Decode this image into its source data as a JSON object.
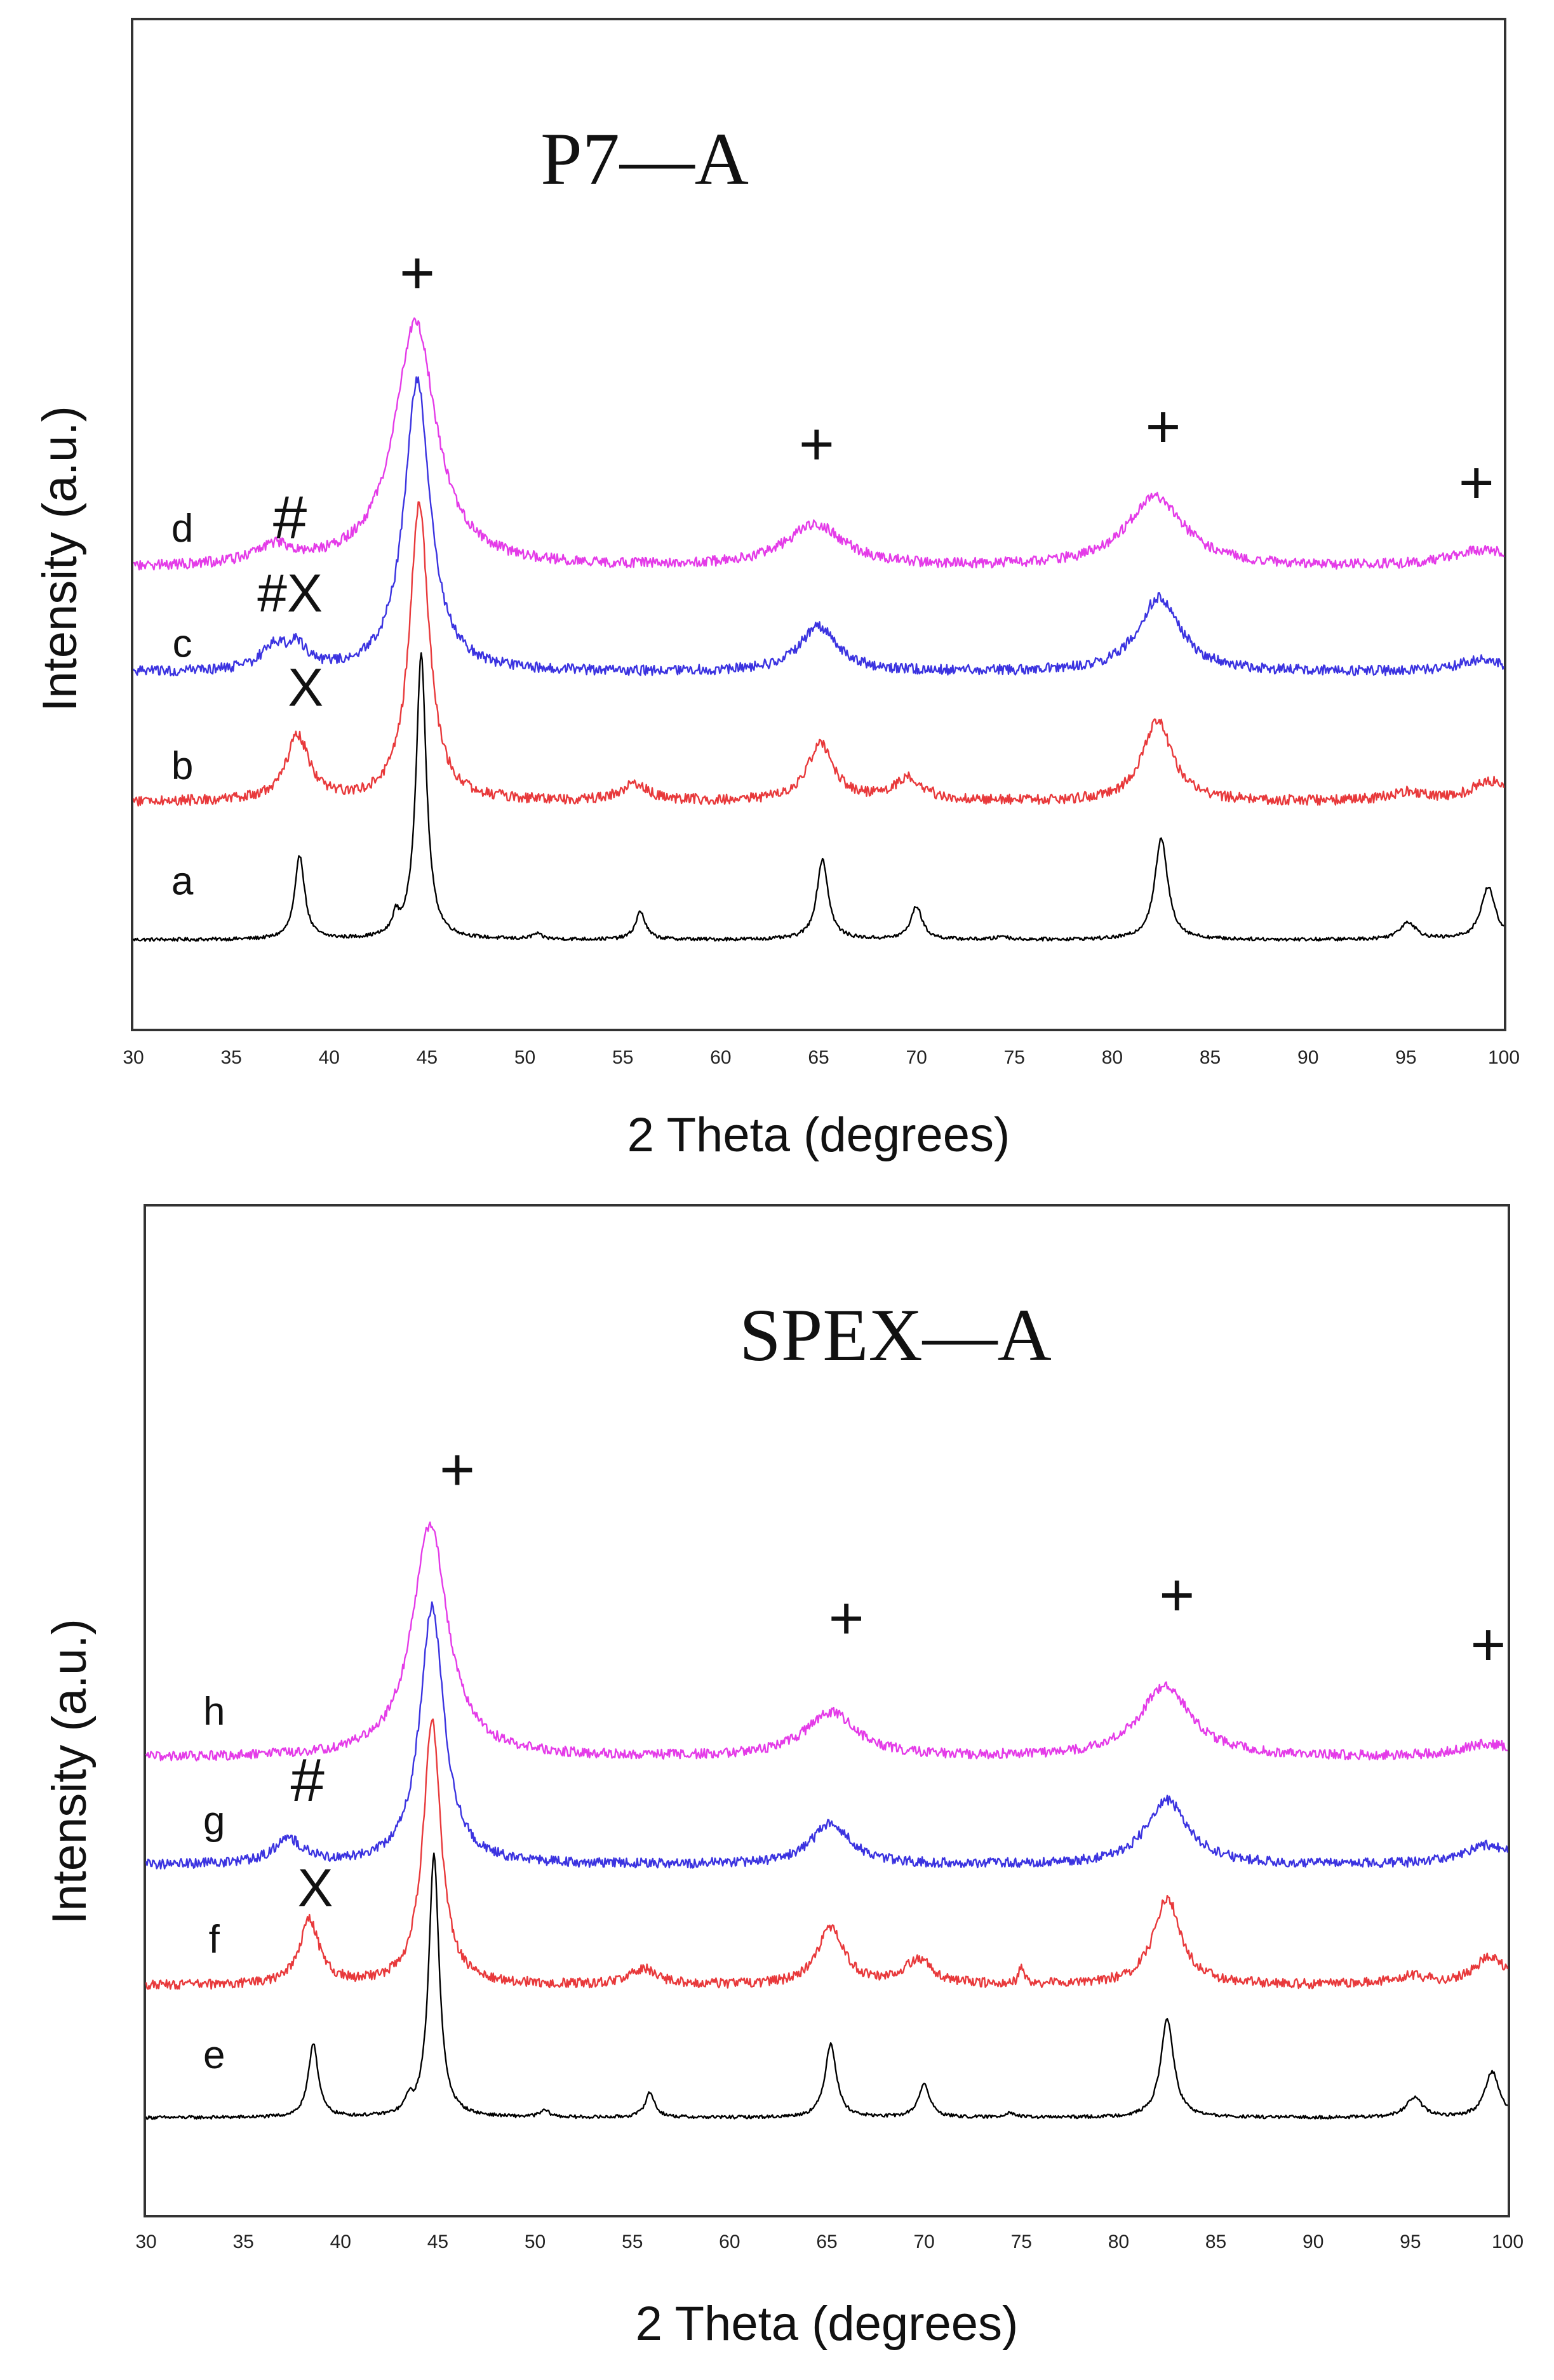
{
  "chart_data": [
    {
      "type": "line",
      "title": "P7—A",
      "xlabel": "2 Theta (degrees)",
      "ylabel": "Intensity (a.u.)",
      "xlim": [
        30,
        100
      ],
      "xticks": [
        "30",
        "35",
        "40",
        "45",
        "50",
        "55",
        "60",
        "65",
        "70",
        "75",
        "80",
        "85",
        "90",
        "95",
        "100"
      ],
      "grid": false,
      "series": [
        {
          "name": "a",
          "color": "#000000",
          "baseline": 0.0,
          "noise": 0.01,
          "peaks": [
            [
              38.5,
              0.48,
              0.3
            ],
            [
              43.4,
              0.1,
              0.2
            ],
            [
              44.7,
              1.63,
              0.32
            ],
            [
              50.6,
              0.03,
              0.3
            ],
            [
              55.9,
              0.16,
              0.3
            ],
            [
              65.2,
              0.46,
              0.35
            ],
            [
              70.0,
              0.19,
              0.35
            ],
            [
              74.4,
              0.02,
              0.3
            ],
            [
              82.5,
              0.58,
              0.4
            ],
            [
              95.1,
              0.1,
              0.5
            ],
            [
              99.2,
              0.3,
              0.45
            ]
          ]
        },
        {
          "name": "b",
          "color": "#e8393b",
          "baseline": 0.79,
          "noise": 0.03,
          "peaks": [
            [
              38.4,
              0.37,
              0.7
            ],
            [
              44.6,
              1.7,
              0.6
            ],
            [
              55.6,
              0.1,
              0.8
            ],
            [
              65.1,
              0.33,
              0.8
            ],
            [
              69.6,
              0.13,
              0.9
            ],
            [
              82.3,
              0.47,
              0.9
            ],
            [
              95.0,
              0.05,
              1.2
            ],
            [
              99.2,
              0.12,
              1.0
            ]
          ]
        },
        {
          "name": "c",
          "color": "#3b33e0",
          "baseline": 1.53,
          "noise": 0.03,
          "peaks": [
            [
              37.2,
              0.14,
              0.8
            ],
            [
              38.4,
              0.12,
              0.6
            ],
            [
              44.5,
              1.67,
              0.8
            ],
            [
              65.0,
              0.26,
              1.2
            ],
            [
              82.4,
              0.43,
              1.3
            ],
            [
              98.8,
              0.07,
              1.5
            ]
          ]
        },
        {
          "name": "d",
          "color": "#e43be8",
          "baseline": 2.13,
          "noise": 0.03,
          "peaks": [
            [
              37.2,
              0.1,
              1.2
            ],
            [
              44.4,
              1.4,
              1.3
            ],
            [
              64.8,
              0.24,
              1.8
            ],
            [
              82.2,
              0.4,
              1.8
            ],
            [
              99.0,
              0.1,
              2.0
            ]
          ]
        }
      ],
      "annotations": [
        {
          "text": "+",
          "x": 44.5,
          "y": 3.7
        },
        {
          "text": "+",
          "x": 64.9,
          "y": 2.72
        },
        {
          "text": "+",
          "x": 82.6,
          "y": 2.82
        },
        {
          "text": "+",
          "x": 98.6,
          "y": 2.5
        },
        {
          "text": "#",
          "x": 38.0,
          "y": 2.3
        },
        {
          "text": "#X",
          "x": 38.0,
          "y": 1.88
        },
        {
          "text": "X",
          "x": 38.8,
          "y": 1.34
        },
        {
          "text": "d",
          "x": 32.5,
          "y": 2.28
        },
        {
          "text": "c",
          "x": 32.5,
          "y": 1.62
        },
        {
          "text": "b",
          "x": 32.5,
          "y": 0.92
        },
        {
          "text": "a",
          "x": 32.5,
          "y": 0.26
        }
      ]
    },
    {
      "type": "line",
      "title": "SPEX—A",
      "xlabel": "2 Theta (degrees)",
      "ylabel": "Intensity (a.u.)",
      "xlim": [
        30,
        100
      ],
      "xticks": [
        "30",
        "35",
        "40",
        "45",
        "50",
        "55",
        "60",
        "65",
        "70",
        "75",
        "80",
        "85",
        "90",
        "95",
        "100"
      ],
      "grid": false,
      "series": [
        {
          "name": "e",
          "color": "#000000",
          "baseline": 0.0,
          "noise": 0.01,
          "peaks": [
            [
              38.6,
              0.45,
              0.3
            ],
            [
              43.5,
              0.08,
              0.2
            ],
            [
              44.8,
              1.6,
              0.32
            ],
            [
              50.5,
              0.04,
              0.3
            ],
            [
              55.9,
              0.15,
              0.3
            ],
            [
              65.2,
              0.45,
              0.35
            ],
            [
              70.0,
              0.2,
              0.35
            ],
            [
              74.4,
              0.03,
              0.3
            ],
            [
              82.5,
              0.6,
              0.4
            ],
            [
              95.2,
              0.12,
              0.5
            ],
            [
              99.2,
              0.28,
              0.45
            ]
          ]
        },
        {
          "name": "f",
          "color": "#e8393b",
          "baseline": 0.8,
          "noise": 0.03,
          "peaks": [
            [
              38.4,
              0.39,
              0.6
            ],
            [
              44.7,
              1.6,
              0.55
            ],
            [
              55.6,
              0.1,
              0.8
            ],
            [
              65.2,
              0.35,
              0.8
            ],
            [
              69.7,
              0.15,
              0.9
            ],
            [
              75.0,
              0.1,
              0.15
            ],
            [
              82.5,
              0.53,
              0.85
            ],
            [
              95.0,
              0.05,
              1.2
            ],
            [
              99.1,
              0.17,
              1.0
            ]
          ]
        },
        {
          "name": "g",
          "color": "#3b33e0",
          "baseline": 1.53,
          "noise": 0.03,
          "peaks": [
            [
              37.3,
              0.15,
              0.9
            ],
            [
              44.7,
              1.56,
              0.75
            ],
            [
              65.2,
              0.25,
              1.2
            ],
            [
              82.5,
              0.39,
              1.3
            ],
            [
              99.0,
              0.12,
              1.5
            ]
          ]
        },
        {
          "name": "h",
          "color": "#e43be8",
          "baseline": 2.18,
          "noise": 0.03,
          "peaks": [
            [
              44.6,
              1.41,
              1.1
            ],
            [
              65.2,
              0.27,
              1.6
            ],
            [
              82.4,
              0.43,
              1.6
            ],
            [
              99.0,
              0.08,
              1.8
            ]
          ]
        }
      ],
      "annotations": [
        {
          "text": "+",
          "x": 46.0,
          "y": 3.8
        },
        {
          "text": "+",
          "x": 66.0,
          "y": 2.9
        },
        {
          "text": "+",
          "x": 83.0,
          "y": 3.04
        },
        {
          "text": "+",
          "x": 99.0,
          "y": 2.74
        },
        {
          "text": "#",
          "x": 38.3,
          "y": 1.92
        },
        {
          "text": "X",
          "x": 38.7,
          "y": 1.28
        },
        {
          "text": "h",
          "x": 33.5,
          "y": 2.38
        },
        {
          "text": "g",
          "x": 33.5,
          "y": 1.72
        },
        {
          "text": "f",
          "x": 33.5,
          "y": 1.0
        },
        {
          "text": "e",
          "x": 33.5,
          "y": 0.3
        }
      ]
    }
  ]
}
